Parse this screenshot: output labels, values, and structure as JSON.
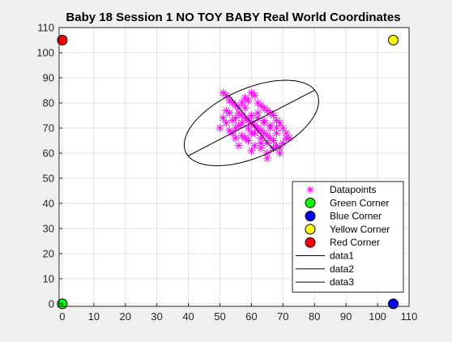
{
  "chart_data": {
    "type": "scatter",
    "title": "Baby 18 Session 1  NO TOY BABY Real World Coordinates",
    "xlabel": "",
    "ylabel": "",
    "xlim": [
      -1,
      110
    ],
    "ylim": [
      -1,
      110
    ],
    "grid": true,
    "legend_placement": "bottom-right",
    "x_ticks": [
      0,
      10,
      20,
      30,
      40,
      50,
      60,
      70,
      80,
      90,
      100,
      110
    ],
    "y_ticks": [
      0,
      10,
      20,
      30,
      40,
      50,
      60,
      70,
      80,
      90,
      100,
      110
    ],
    "x_tick_labels": [
      "0",
      "10",
      "20",
      "30",
      "40",
      "50",
      "60",
      "70",
      "80",
      "90",
      "100",
      "110"
    ],
    "y_tick_labels": [
      "0",
      "10",
      "20",
      "30",
      "40",
      "50",
      "60",
      "70",
      "80",
      "90",
      "100",
      "110"
    ],
    "datapoints": {
      "name": "Datapoints",
      "color": "#ff00ff",
      "x": [
        51,
        52,
        53,
        54,
        52,
        55,
        57,
        56,
        58,
        59,
        60,
        61,
        62,
        63,
        64,
        65,
        66,
        67,
        68,
        69,
        70,
        71,
        71,
        70,
        69,
        68,
        67,
        66,
        65,
        64,
        63,
        62,
        61,
        60,
        59,
        58,
        57,
        56,
        55,
        54,
        53,
        52,
        51,
        53,
        55,
        57,
        59,
        61,
        63,
        65,
        67,
        58,
        60,
        62,
        64,
        56,
        54,
        66,
        68,
        60,
        62,
        57,
        59,
        61,
        63,
        65,
        55,
        58,
        62,
        64,
        66,
        68,
        56,
        60,
        63,
        50,
        72,
        69,
        67,
        65
      ],
      "y": [
        84,
        83,
        81,
        80,
        77,
        79,
        80,
        78,
        82,
        81,
        84,
        83,
        80,
        79,
        78,
        77,
        76,
        75,
        73,
        72,
        70,
        68,
        66,
        64,
        62,
        63,
        65,
        66,
        67,
        68,
        69,
        70,
        71,
        72,
        73,
        74,
        75,
        76,
        70,
        68,
        69,
        72,
        74,
        76,
        74,
        72,
        70,
        68,
        66,
        64,
        62,
        66,
        68,
        70,
        72,
        71,
        73,
        70,
        68,
        75,
        74,
        67,
        65,
        63,
        62,
        60,
        66,
        78,
        76,
        73,
        71,
        70,
        63,
        61,
        64,
        70,
        66,
        60,
        62,
        58
      ]
    },
    "corners": [
      {
        "name": "Green Corner",
        "x": 0,
        "y": 0,
        "color": "#00ff00"
      },
      {
        "name": "Blue Corner",
        "x": 105,
        "y": 0,
        "color": "#0000ff"
      },
      {
        "name": "Yellow Corner",
        "x": 105,
        "y": 105,
        "color": "#ffff00"
      },
      {
        "name": "Red Corner",
        "x": 0,
        "y": 105,
        "color": "#ff0000"
      }
    ],
    "lines": [
      {
        "name": "data1",
        "type": "ellipse",
        "cx": 60,
        "cy": 72,
        "rx": 24,
        "ry": 13,
        "angle_deg": 33,
        "color": "#000000"
      },
      {
        "name": "data2",
        "x": [
          39.9,
          80.1
        ],
        "y": [
          58.9,
          85.1
        ],
        "color": "#000000"
      },
      {
        "name": "data3",
        "x": [
          52.9,
          67.1
        ],
        "y": [
          82.9,
          61.1
        ],
        "color": "#000000"
      }
    ],
    "legend": [
      "Datapoints",
      "Green Corner",
      "Blue Corner",
      "Yellow Corner",
      "Red Corner",
      "data1",
      "data2",
      "data3"
    ]
  }
}
